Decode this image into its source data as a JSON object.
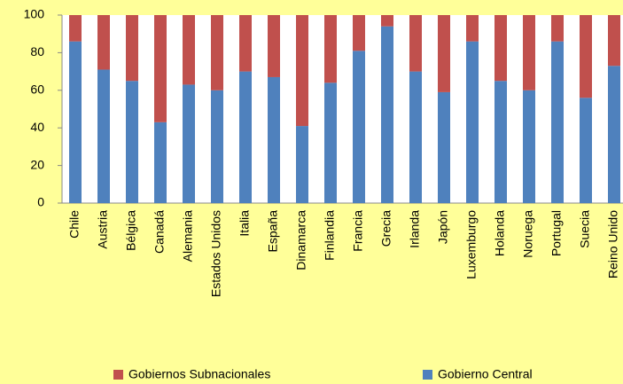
{
  "chart_data": {
    "type": "stacked_bar",
    "categories": [
      "Chile",
      "Austria",
      "Bélgica",
      "Canadá",
      "Alemania",
      "Estados Unidos",
      "Italia",
      "España",
      "Dinamarca",
      "Finlandia",
      "Francia",
      "Grecia",
      "Irlanda",
      "Japón",
      "Luxemburgo",
      "Holanda",
      "Noruega",
      "Portugal",
      "Suecia",
      "Reino Unido"
    ],
    "series": [
      {
        "name": "Gobierno Central",
        "color": "#4f81bd",
        "values": [
          86,
          71,
          65,
          43,
          63,
          60,
          70,
          67,
          41,
          64,
          81,
          94,
          70,
          59,
          86,
          65,
          60,
          86,
          56,
          73
        ]
      },
      {
        "name": "Gobiernos Subnacionales",
        "color": "#c0504d",
        "values": [
          14,
          29,
          35,
          57,
          37,
          40,
          30,
          33,
          59,
          36,
          19,
          6,
          30,
          41,
          14,
          35,
          40,
          14,
          44,
          27
        ]
      }
    ],
    "ylim": [
      0,
      100
    ],
    "yticks": [
      0,
      20,
      40,
      60,
      80,
      100
    ],
    "grid": false,
    "legend": "bottom"
  }
}
